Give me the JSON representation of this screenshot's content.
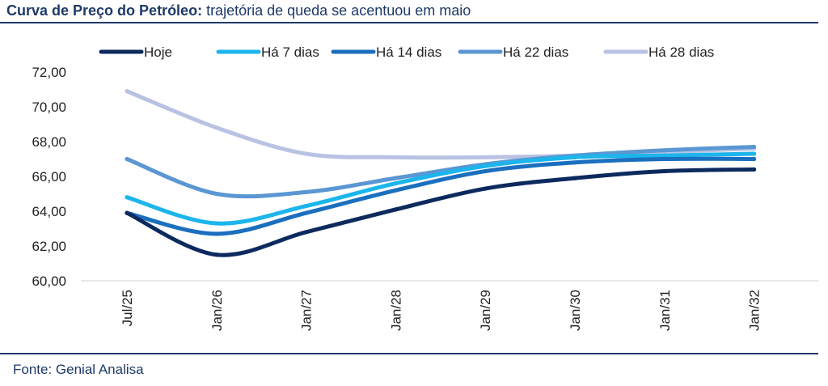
{
  "header": {
    "title_bold": "Curva de Preço do Petróleo:",
    "title_rest": " trajetória de queda se acentuou em maio"
  },
  "footer": {
    "source": "Fonte: Genial Analisa"
  },
  "chart_data": {
    "type": "line",
    "categories": [
      "Jul/25",
      "Jan/26",
      "Jan/27",
      "Jan/28",
      "Jan/29",
      "Jan/30",
      "Jan/31",
      "Jan/32"
    ],
    "y_tick_labels": [
      "60,00",
      "62,00",
      "64,00",
      "66,00",
      "68,00",
      "70,00",
      "72,00"
    ],
    "ylim": [
      60,
      72
    ],
    "legend_position": "top",
    "grid": false,
    "series": [
      {
        "name": "Hoje",
        "color": "#0d2a5e",
        "values": [
          63.9,
          61.5,
          62.8,
          64.1,
          65.3,
          65.9,
          66.3,
          66.4
        ]
      },
      {
        "name": "Há 7 dias",
        "color": "#1cb5ec",
        "values": [
          64.8,
          63.3,
          64.3,
          65.6,
          66.6,
          67.1,
          67.2,
          67.3
        ]
      },
      {
        "name": "Há 14 dias",
        "color": "#1a6fbf",
        "values": [
          63.9,
          62.7,
          63.9,
          65.2,
          66.3,
          66.8,
          67.0,
          67.0
        ]
      },
      {
        "name": "Há 22 dias",
        "color": "#5a97d3",
        "values": [
          67.0,
          65.0,
          65.1,
          65.9,
          66.7,
          67.2,
          67.5,
          67.7
        ]
      },
      {
        "name": "Há 28 dias",
        "color": "#b9c2e2",
        "values": [
          70.9,
          68.8,
          67.3,
          67.1,
          67.1,
          67.2,
          67.4,
          67.6
        ]
      }
    ]
  }
}
